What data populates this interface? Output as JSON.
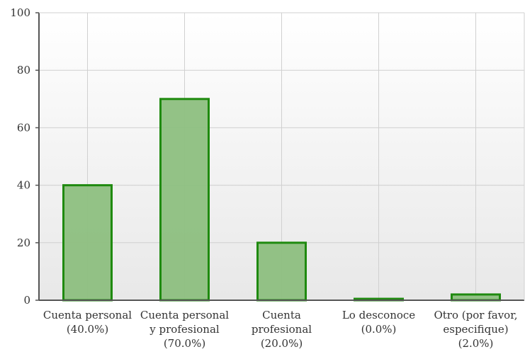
{
  "chart_data": {
    "type": "bar",
    "categories": [
      [
        "Cuenta personal",
        "(40.0%)"
      ],
      [
        "Cuenta personal",
        "y profesional",
        "(70.0%)"
      ],
      [
        "Cuenta",
        "profesional",
        "(20.0%)"
      ],
      [
        "Lo desconoce",
        "(0.0%)"
      ],
      [
        "Otro (por favor,",
        "especifique)",
        "(2.0%)"
      ]
    ],
    "values": [
      40,
      70,
      20,
      0,
      2
    ],
    "ylim": [
      0,
      100
    ],
    "yticks": [
      "0",
      "20",
      "40",
      "60",
      "80",
      "100"
    ],
    "title": "",
    "xlabel": "",
    "ylabel": "",
    "grid": true,
    "colors": {
      "bar_fill": "#8dbf7f",
      "bar_stroke": "#1f8a0f",
      "grid": "#d0d0d0",
      "axis": "#555555",
      "bg_top": "#ffffff",
      "bg_bottom": "#e8e8e8"
    }
  }
}
